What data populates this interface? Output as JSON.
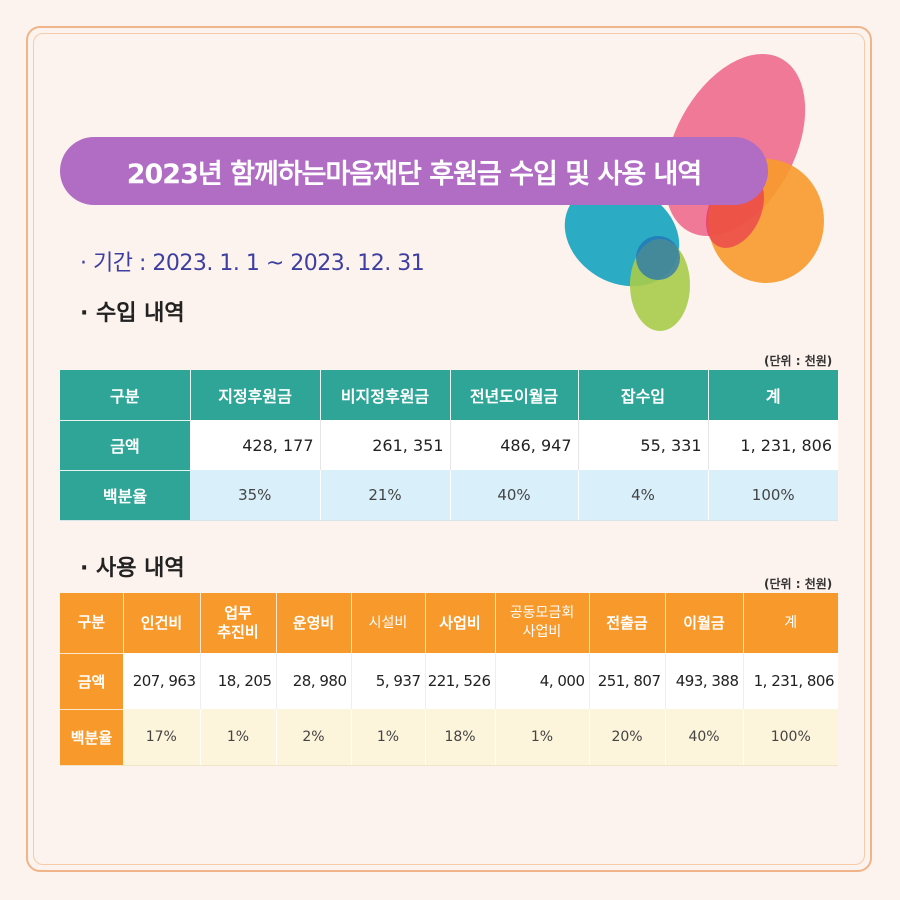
{
  "title": "2023년 함께하는마음재단 후원금 수입 및 사용 내역",
  "period": "· 기간 : 2023. 1. 1 ~ 2023. 12. 31",
  "income": {
    "section_title": "· 수입 내역",
    "unit": "(단위 : 천원)",
    "headers": [
      "구분",
      "지정후원금",
      "비지정후원금",
      "전년도이월금",
      "잡수입",
      "계"
    ],
    "amount_label": "금액",
    "amounts": [
      "428, 177",
      "261, 351",
      "486, 947",
      "55, 331",
      "1, 231, 806"
    ],
    "percent_label": "백분율",
    "percents": [
      "35%",
      "21%",
      "40%",
      "4%",
      "100%"
    ]
  },
  "expense": {
    "section_title": "· 사용 내역",
    "unit": "(단위 : 천원)",
    "header_first": "구분",
    "headers": [
      {
        "l1": "인건비",
        "l2": ""
      },
      {
        "l1": "업무",
        "l2": "추진비"
      },
      {
        "l1": "운영비",
        "l2": ""
      },
      {
        "l1": "시설비",
        "l2": ""
      },
      {
        "l1": "사업비",
        "l2": ""
      },
      {
        "l1": "공동모금회",
        "l2": "사업비"
      },
      {
        "l1": "전출금",
        "l2": ""
      },
      {
        "l1": "이월금",
        "l2": ""
      },
      {
        "l1": "계",
        "l2": ""
      }
    ],
    "amount_label": "금액",
    "amounts": [
      "207, 963",
      "18, 205",
      "28, 980",
      "5, 937",
      "221, 526",
      "4, 000",
      "251, 807",
      "493, 388",
      "1, 231, 806"
    ],
    "percent_label": "백분율",
    "percents": [
      "17%",
      "1%",
      "2%",
      "1%",
      "18%",
      "1%",
      "20%",
      "40%",
      "100%"
    ]
  },
  "colors": {
    "income_header": "#2ea596",
    "expense_header": "#f79a2b",
    "banner": "#b16cc4",
    "period_text": "#3d3fa0"
  }
}
